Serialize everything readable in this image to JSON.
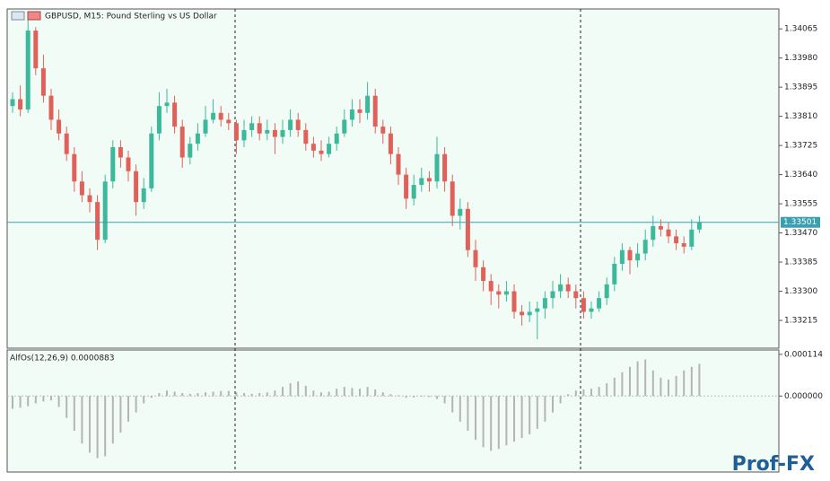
{
  "chart_data": [
    {
      "type": "candlestick",
      "title": "GBPUSD, M15:  Pound Sterling vs US Dollar",
      "up_color": "#3cb89a",
      "down_color": "#e0605a",
      "ylim": [
        1.33134,
        1.34123
      ],
      "yticks": [
        1.34065,
        {
          "value": 1.3398,
          "label": "1.33980"
        },
        1.33895,
        {
          "value": 1.3381,
          "label": "1.33810"
        },
        1.33725,
        {
          "value": 1.3364,
          "label": "1.33640"
        },
        1.33555,
        {
          "value": 1.3347,
          "label": "1.33470"
        },
        1.33385,
        {
          "value": 1.333,
          "label": "1.33300"
        },
        1.33215
      ],
      "last_price": 1.33501,
      "last_price_color": "#3a9fb0",
      "candles": [
        [
          1.3384,
          1.3388,
          1.3382,
          1.3386
        ],
        [
          1.3386,
          1.339,
          1.3381,
          1.3383
        ],
        [
          1.3383,
          1.3409,
          1.3382,
          1.3406
        ],
        [
          1.3406,
          1.3407,
          1.3393,
          1.3395
        ],
        [
          1.3395,
          1.3399,
          1.3385,
          1.3387
        ],
        [
          1.3387,
          1.3389,
          1.3377,
          1.338
        ],
        [
          1.338,
          1.3383,
          1.3374,
          1.3376
        ],
        [
          1.3376,
          1.3378,
          1.3368,
          1.337
        ],
        [
          1.337,
          1.3372,
          1.3359,
          1.3362
        ],
        [
          1.3362,
          1.3365,
          1.3356,
          1.3358
        ],
        [
          1.3358,
          1.336,
          1.3353,
          1.3356
        ],
        [
          1.3356,
          1.3358,
          1.3342,
          1.3345
        ],
        [
          1.3345,
          1.3364,
          1.3344,
          1.3362
        ],
        [
          1.3362,
          1.3374,
          1.336,
          1.3372
        ],
        [
          1.3372,
          1.3374,
          1.3366,
          1.3369
        ],
        [
          1.3369,
          1.3371,
          1.3362,
          1.3365
        ],
        [
          1.3365,
          1.3367,
          1.3352,
          1.3356
        ],
        [
          1.3356,
          1.3363,
          1.3354,
          1.336
        ],
        [
          1.336,
          1.3378,
          1.3359,
          1.3376
        ],
        [
          1.3376,
          1.3388,
          1.3374,
          1.3384
        ],
        [
          1.3384,
          1.3389,
          1.3382,
          1.3385
        ],
        [
          1.3385,
          1.3387,
          1.3376,
          1.3378
        ],
        [
          1.3378,
          1.338,
          1.3366,
          1.3369
        ],
        [
          1.3369,
          1.3375,
          1.3367,
          1.3373
        ],
        [
          1.3373,
          1.3379,
          1.3371,
          1.3376
        ],
        [
          1.3376,
          1.3384,
          1.3375,
          1.338
        ],
        [
          1.338,
          1.3386,
          1.3379,
          1.3382
        ],
        [
          1.3382,
          1.3384,
          1.3378,
          1.338
        ],
        [
          1.338,
          1.3382,
          1.3377,
          1.3379
        ],
        [
          1.3379,
          1.338,
          1.337,
          1.3374
        ],
        [
          1.3374,
          1.338,
          1.3372,
          1.3377
        ],
        [
          1.3377,
          1.3381,
          1.3375,
          1.3379
        ],
        [
          1.3379,
          1.3381,
          1.3374,
          1.3376
        ],
        [
          1.3376,
          1.338,
          1.3374,
          1.3377
        ],
        [
          1.3377,
          1.3379,
          1.337,
          1.3375
        ],
        [
          1.3375,
          1.338,
          1.3373,
          1.3377
        ],
        [
          1.3377,
          1.3383,
          1.3375,
          1.338
        ],
        [
          1.338,
          1.3382,
          1.3375,
          1.3377
        ],
        [
          1.3377,
          1.3379,
          1.3371,
          1.3373
        ],
        [
          1.3373,
          1.3375,
          1.3369,
          1.3371
        ],
        [
          1.3371,
          1.3374,
          1.3368,
          1.337
        ],
        [
          1.337,
          1.3375,
          1.3369,
          1.3373
        ],
        [
          1.3373,
          1.3378,
          1.3371,
          1.3376
        ],
        [
          1.3376,
          1.3383,
          1.3375,
          1.338
        ],
        [
          1.338,
          1.3386,
          1.3378,
          1.3383
        ],
        [
          1.3383,
          1.3386,
          1.3379,
          1.3382
        ],
        [
          1.3382,
          1.3391,
          1.338,
          1.3387
        ],
        [
          1.3387,
          1.3389,
          1.3376,
          1.3378
        ],
        [
          1.3378,
          1.338,
          1.3373,
          1.3376
        ],
        [
          1.3376,
          1.3378,
          1.3367,
          1.337
        ],
        [
          1.337,
          1.3372,
          1.3361,
          1.3364
        ],
        [
          1.3364,
          1.3366,
          1.3354,
          1.3357
        ],
        [
          1.3357,
          1.3364,
          1.3355,
          1.3361
        ],
        [
          1.3361,
          1.3366,
          1.3359,
          1.3363
        ],
        [
          1.3363,
          1.3365,
          1.3359,
          1.3362
        ],
        [
          1.3362,
          1.3375,
          1.336,
          1.337
        ],
        [
          1.337,
          1.3372,
          1.3359,
          1.3362
        ],
        [
          1.3362,
          1.3364,
          1.3349,
          1.3352
        ],
        [
          1.3352,
          1.3357,
          1.3348,
          1.3354
        ],
        [
          1.3354,
          1.3356,
          1.334,
          1.3342
        ],
        [
          1.3342,
          1.3345,
          1.3333,
          1.3337
        ],
        [
          1.3337,
          1.3339,
          1.333,
          1.3333
        ],
        [
          1.3333,
          1.3335,
          1.3326,
          1.333
        ],
        [
          1.333,
          1.3332,
          1.3325,
          1.3329
        ],
        [
          1.3329,
          1.3333,
          1.3327,
          1.333
        ],
        [
          1.333,
          1.3332,
          1.3322,
          1.3324
        ],
        [
          1.3324,
          1.3326,
          1.332,
          1.3323
        ],
        [
          1.3323,
          1.3327,
          1.3321,
          1.3324
        ],
        [
          1.3324,
          1.3327,
          1.3316,
          1.3325
        ],
        [
          1.3325,
          1.333,
          1.3322,
          1.3328
        ],
        [
          1.3328,
          1.3333,
          1.3325,
          1.333
        ],
        [
          1.333,
          1.3335,
          1.3328,
          1.3332
        ],
        [
          1.3332,
          1.3334,
          1.3328,
          1.333
        ],
        [
          1.333,
          1.3332,
          1.3325,
          1.3328
        ],
        [
          1.3328,
          1.333,
          1.3322,
          1.3324
        ],
        [
          1.3324,
          1.3327,
          1.3322,
          1.3325
        ],
        [
          1.3325,
          1.333,
          1.3324,
          1.3328
        ],
        [
          1.3328,
          1.3334,
          1.3326,
          1.3332
        ],
        [
          1.3332,
          1.334,
          1.333,
          1.3338
        ],
        [
          1.3338,
          1.3344,
          1.3336,
          1.3342
        ],
        [
          1.3342,
          1.3343,
          1.3335,
          1.3339
        ],
        [
          1.3339,
          1.3344,
          1.3337,
          1.3341
        ],
        [
          1.3341,
          1.3348,
          1.3339,
          1.3345
        ],
        [
          1.3345,
          1.3352,
          1.3343,
          1.3349
        ],
        [
          1.3349,
          1.3351,
          1.3346,
          1.3348
        ],
        [
          1.3348,
          1.335,
          1.3344,
          1.3346
        ],
        [
          1.3346,
          1.3348,
          1.3342,
          1.3344
        ],
        [
          1.3344,
          1.3346,
          1.3341,
          1.3343
        ],
        [
          1.3343,
          1.3351,
          1.3342,
          1.3348
        ],
        [
          1.3348,
          1.3352,
          1.3347,
          1.33501
        ]
      ]
    },
    {
      "type": "histogram",
      "title": "AlfOs(12,26,9) 0.0000883",
      "color": "#b4b4b4",
      "ylim": [
        -0.000208,
        0.000126
      ],
      "yticks": [
        0.000114,
        {
          "value": 0,
          "label": "0.000000"
        }
      ],
      "values": [
        -3.5e-05,
        -3.2e-05,
        -2.8e-05,
        -2e-05,
        -1.5e-05,
        -1.2e-05,
        -3e-05,
        -6e-05,
        -9.5e-05,
        -0.00013,
        -0.000155,
        -0.00017,
        -0.000165,
        -0.00013,
        -0.0001,
        -7e-05,
        -4.5e-05,
        -2e-05,
        -5e-06,
        8e-06,
        1.5e-05,
        1.2e-05,
        8e-06,
        6e-06,
        8e-06,
        1e-05,
        1.2e-05,
        1.4e-05,
        1.4e-05,
        1e-05,
        8e-06,
        6e-06,
        8e-06,
        1e-05,
        1.5e-05,
        2.5e-05,
        3.5e-05,
        4e-05,
        2.8e-05,
        1.5e-05,
        1e-05,
        1.2e-05,
        2e-05,
        2.5e-05,
        2.2e-05,
        2e-05,
        2.5e-05,
        1.8e-05,
        1e-05,
        5e-06,
        2e-06,
        -5e-06,
        -4e-06,
        -2e-06,
        -3e-06,
        -8e-06,
        -2e-05,
        -4.5e-05,
        -7e-05,
        -9.5e-05,
        -0.00012,
        -0.00014,
        -0.00015,
        -0.000145,
        -0.000135,
        -0.000125,
        -0.000115,
        -0.000105,
        -9e-05,
        -7e-05,
        -4.5e-05,
        -2e-05,
        5e-06,
        1.5e-05,
        1.8e-05,
        2e-05,
        2.5e-05,
        3.5e-05,
        5e-05,
        6.5e-05,
        8e-05,
        9.5e-05,
        0.0001,
        7e-05,
        5e-05,
        4.5e-05,
        5.5e-05,
        7e-05,
        8e-05,
        8.83e-05
      ]
    }
  ],
  "watermark": "Prof-FX"
}
